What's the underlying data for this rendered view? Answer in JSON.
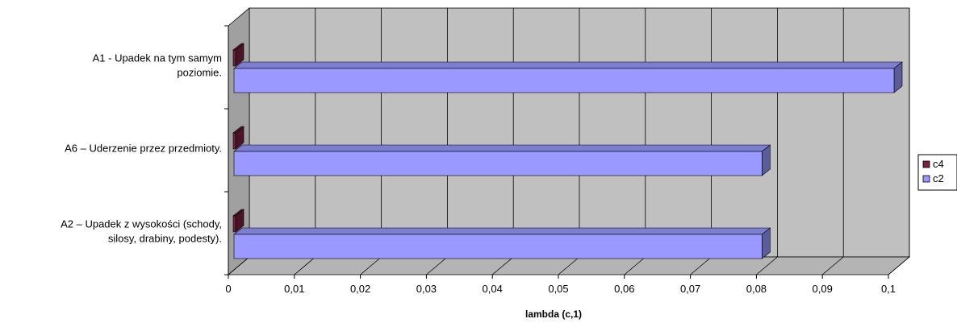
{
  "chart_data": {
    "type": "bar",
    "orientation": "horizontal",
    "style": "3d",
    "categories": [
      "A1 - Upadek na tym samym poziomie.",
      "A6 – Uderzenie przez przedmioty.",
      "A2 – Upadek z wysokości (schody, silosy, drabiny, podesty)."
    ],
    "category_lines": [
      [
        "A1 - Upadek na tym samym",
        "poziomie."
      ],
      [
        "A6 – Uderzenie przez przedmioty."
      ],
      [
        "A2 – Upadek z wysokości (schody,",
        "silosy, drabiny, podesty)."
      ]
    ],
    "series": [
      {
        "name": "c4",
        "values": [
          0,
          0,
          0
        ],
        "color": "#7a2042"
      },
      {
        "name": "c2",
        "values": [
          0.1,
          0.08,
          0.08
        ],
        "color": "#9999ff"
      }
    ],
    "xlim": [
      0,
      0.1
    ],
    "x_ticks": [
      "0",
      "0,01",
      "0,02",
      "0,03",
      "0,04",
      "0,05",
      "0,06",
      "0,07",
      "0,08",
      "0,09",
      "0,1"
    ],
    "xlabel": "lambda (c,1)",
    "ylabel": "",
    "title": "",
    "grid": true,
    "legend_position": "right",
    "colors": {
      "wall": "#c0c0c0",
      "floor": "#b4b4b4",
      "side_wall": "#a0a0a0",
      "gridline": "#000000"
    }
  }
}
